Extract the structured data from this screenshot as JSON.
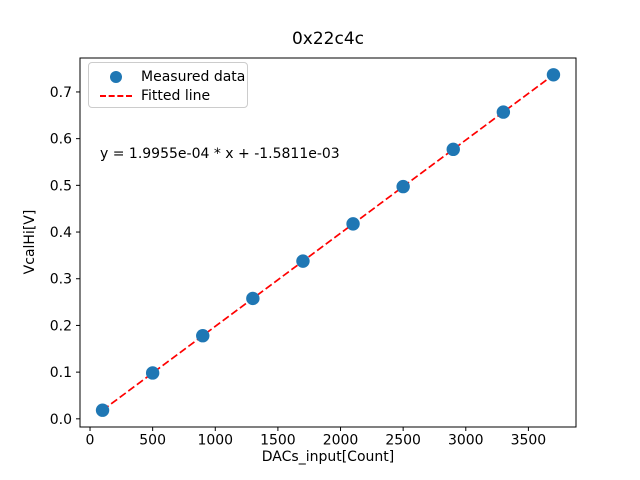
{
  "figure_title": "0x22c4c",
  "chart_data": {
    "type": "scatter",
    "title": "0x22c4c",
    "xlabel": "DACs_input[Count]",
    "ylabel": "VcalHi[V]",
    "x": [
      100,
      500,
      900,
      1300,
      1700,
      2100,
      2500,
      2900,
      3300,
      3700
    ],
    "series": [
      {
        "name": "Measured data",
        "type": "scatter",
        "color": "#1f77b4",
        "values": [
          0.0184,
          0.0982,
          0.178,
          0.2578,
          0.3377,
          0.4175,
          0.4973,
          0.5771,
          0.6569,
          0.7368
        ]
      },
      {
        "name": "Fitted line",
        "type": "line",
        "style": "dashed",
        "color": "#ff0000",
        "slope": 0.00019955,
        "intercept": -0.0015811,
        "x_span": [
          100,
          3700
        ]
      }
    ],
    "annotation": "y = 1.9955e-04 * x + -1.5811e-03",
    "xlim": [
      -80,
      3880
    ],
    "ylim": [
      -0.0175,
      0.7727
    ],
    "xticks": [
      0,
      500,
      1000,
      1500,
      2000,
      2500,
      3000,
      3500
    ],
    "yticks": [
      0.0,
      0.1,
      0.2,
      0.3,
      0.4,
      0.5,
      0.6,
      0.7
    ],
    "grid": false,
    "legend_position": "upper-left"
  }
}
